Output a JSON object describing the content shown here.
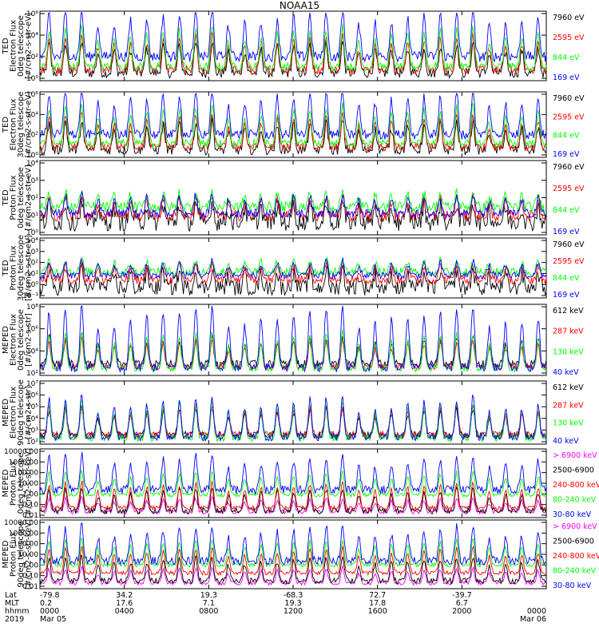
{
  "title": "NOAA15",
  "colors": {
    "black": "#000000",
    "red": "#ff0000",
    "green": "#00ff00",
    "blue": "#0000ff",
    "magenta": "#ff00ff"
  },
  "chart_data": [
    {
      "type": "line",
      "ylabel": [
        "TED",
        "Electron Flux",
        "0deg telescope",
        "[#/cm2-s-str-eV]"
      ],
      "yticks": [
        "10⁶",
        "10⁴",
        "10²",
        "10⁰"
      ],
      "log": true,
      "series": [
        {
          "name": "7960 eV",
          "color": "#000000",
          "base": 0.6,
          "amp": 2.6,
          "noise": 0.5
        },
        {
          "name": "2595 eV",
          "color": "#ff0000",
          "base": 0.9,
          "amp": 3.0,
          "noise": 0.4
        },
        {
          "name": "844 eV",
          "color": "#00ff00",
          "base": 1.2,
          "amp": 3.4,
          "noise": 0.4
        },
        {
          "name": "169 eV",
          "color": "#0000ff",
          "base": 2.2,
          "amp": 4.1,
          "noise": 0.5
        }
      ]
    },
    {
      "type": "line",
      "ylabel": [
        "TED",
        "Electron Flux",
        "30deg telescope",
        "[#/cm2-s-str-eV]"
      ],
      "yticks": [
        "10⁶",
        "10⁴",
        "10²",
        "10⁰"
      ],
      "log": true,
      "series": [
        {
          "name": "7960 eV",
          "color": "#000000",
          "base": 0.6,
          "amp": 2.6,
          "noise": 0.5
        },
        {
          "name": "2595 eV",
          "color": "#ff0000",
          "base": 0.9,
          "amp": 3.0,
          "noise": 0.4
        },
        {
          "name": "844 eV",
          "color": "#00ff00",
          "base": 1.3,
          "amp": 3.4,
          "noise": 0.4
        },
        {
          "name": "169 eV",
          "color": "#0000ff",
          "base": 2.2,
          "amp": 4.1,
          "noise": 0.5
        }
      ]
    },
    {
      "type": "line",
      "ylabel": [
        "TED",
        "Proton Flux",
        "0deg telescope",
        "[#/cm2-s-str-eV]"
      ],
      "yticks": [
        "10⁴",
        "10³",
        "10²",
        "10¹",
        "10⁰"
      ],
      "log": true,
      "series": [
        {
          "name": "7960 eV",
          "color": "#000000",
          "base": 1.0,
          "amp": 1.6,
          "noise": 0.8
        },
        {
          "name": "2595 eV",
          "color": "#ff0000",
          "base": 1.6,
          "amp": 1.5,
          "noise": 0.5
        },
        {
          "name": "844 eV",
          "color": "#00ff00",
          "base": 2.4,
          "amp": 1.2,
          "noise": 0.5
        },
        {
          "name": "169 eV",
          "color": "#0000ff",
          "base": 1.8,
          "amp": 1.5,
          "noise": 0.4
        }
      ]
    },
    {
      "type": "line",
      "ylabel": [
        "TED",
        "Proton Flux",
        "30deg telescope",
        "[#/cm2-s-str-eV]"
      ],
      "yticks": [
        "10⁴",
        "10³",
        "10²",
        "10¹",
        "10⁰",
        "10⁻¹"
      ],
      "log": true,
      "series": [
        {
          "name": "7960 eV",
          "color": "#000000",
          "base": 1.0,
          "amp": 1.8,
          "noise": 0.9
        },
        {
          "name": "2595 eV",
          "color": "#ff0000",
          "base": 1.9,
          "amp": 1.6,
          "noise": 0.5
        },
        {
          "name": "844 eV",
          "color": "#00ff00",
          "base": 2.8,
          "amp": 1.2,
          "noise": 0.5
        },
        {
          "name": "169 eV",
          "color": "#0000ff",
          "base": 2.4,
          "amp": 1.4,
          "noise": 0.4
        }
      ]
    },
    {
      "type": "line",
      "ylabel": [
        "MEPED",
        "Electron Flux",
        "0deg telescope",
        "[#/cm2-s-str]"
      ],
      "yticks": [
        "10⁸",
        "10⁶",
        "10⁴",
        "10²"
      ],
      "log": true,
      "series": [
        {
          "name": "612 keV",
          "color": "#000000",
          "base": 0.9,
          "amp": 2.4,
          "noise": 0.4
        },
        {
          "name": "287 keV",
          "color": "#ff0000",
          "base": 0.7,
          "amp": 2.2,
          "noise": 0.3
        },
        {
          "name": "130 keV",
          "color": "#00ff00",
          "base": 0.5,
          "amp": 3.0,
          "noise": 0.3
        },
        {
          "name": "40 keV",
          "color": "#0000ff",
          "base": 0.6,
          "amp": 5.2,
          "noise": 0.4
        }
      ]
    },
    {
      "type": "line",
      "ylabel": [
        "MEPED",
        "Electron Flux",
        "90deg telescope",
        "[#/cm2-s-str]"
      ],
      "yticks": [
        "10⁷",
        "10⁶",
        "10⁵",
        "10⁴",
        "10³",
        "10²"
      ],
      "log": true,
      "series": [
        {
          "name": "612 keV",
          "color": "#000000",
          "base": 0.8,
          "amp": 2.6,
          "noise": 0.4
        },
        {
          "name": "287 keV",
          "color": "#ff0000",
          "base": 0.8,
          "amp": 2.8,
          "noise": 0.4
        },
        {
          "name": "130 keV",
          "color": "#00ff00",
          "base": 0.5,
          "amp": 3.4,
          "noise": 0.4
        },
        {
          "name": "40 keV",
          "color": "#0000ff",
          "base": 0.6,
          "amp": 3.8,
          "noise": 0.4
        }
      ]
    },
    {
      "type": "line",
      "ylabel": [
        "MEPED",
        "Proton Flux",
        "0deg telescope",
        "[#/cm2-s-str-keV]"
      ],
      "yticks": [
        "10000.00",
        "1000.00",
        "100.00",
        "10.00",
        "1.00",
        "0.10",
        "0.01"
      ],
      "log": true,
      "series": [
        {
          "name": "> 6900 keV",
          "color": "#ff00ff",
          "base": 0.4,
          "amp": 1.2,
          "noise": 0.2
        },
        {
          "name": "2500-6900",
          "color": "#000000",
          "base": 0.5,
          "amp": 2.0,
          "noise": 0.3
        },
        {
          "name": "240-800 keV",
          "color": "#ff0000",
          "base": 0.8,
          "amp": 2.2,
          "noise": 0.2
        },
        {
          "name": "80-240 keV",
          "color": "#00ff00",
          "base": 2.1,
          "amp": 2.0,
          "noise": 0.2
        },
        {
          "name": "30-80 keV",
          "color": "#0000ff",
          "base": 2.6,
          "amp": 3.0,
          "noise": 0.4
        }
      ]
    },
    {
      "type": "line",
      "ylabel": [
        "MEPED",
        "Proton Flux",
        "90deg telescope",
        "[#/cm2-s-str-keV]"
      ],
      "yticks": [
        "10000.00",
        "1000.00",
        "100.00",
        "10.00",
        "1.00",
        "0.10",
        "0.01"
      ],
      "log": true,
      "series": [
        {
          "name": "> 6900 keV",
          "color": "#ff00ff",
          "base": 0.4,
          "amp": 1.3,
          "noise": 0.2
        },
        {
          "name": "2500-6900",
          "color": "#000000",
          "base": 0.6,
          "amp": 2.1,
          "noise": 0.3
        },
        {
          "name": "240-800 keV",
          "color": "#ff0000",
          "base": 1.4,
          "amp": 2.2,
          "noise": 0.2
        },
        {
          "name": "80-240 keV",
          "color": "#00ff00",
          "base": 2.2,
          "amp": 2.2,
          "noise": 0.2
        },
        {
          "name": "30-80 keV",
          "color": "#0000ff",
          "base": 2.6,
          "amp": 3.0,
          "noise": 0.4
        }
      ]
    }
  ],
  "xaxis": {
    "row_labels": [
      "Lat",
      "MLT",
      "hhmm",
      "2019"
    ],
    "ticks": [
      {
        "lat": "-79.8",
        "mlt": "0.2",
        "hhmm": "0000",
        "date": "Mar 05"
      },
      {
        "lat": "34.2",
        "mlt": "17.6",
        "hhmm": "0400",
        "date": ""
      },
      {
        "lat": "19.3",
        "mlt": "7.1",
        "hhmm": "0800",
        "date": ""
      },
      {
        "lat": "-68.3",
        "mlt": "19.3",
        "hhmm": "1200",
        "date": ""
      },
      {
        "lat": "72.7",
        "mlt": "17.8",
        "hhmm": "1600",
        "date": ""
      },
      {
        "lat": "-39.7",
        "mlt": "6.7",
        "hhmm": "2000",
        "date": ""
      },
      {
        "lat": "",
        "mlt": "",
        "hhmm": "0000",
        "date": "Mar 06"
      }
    ]
  }
}
